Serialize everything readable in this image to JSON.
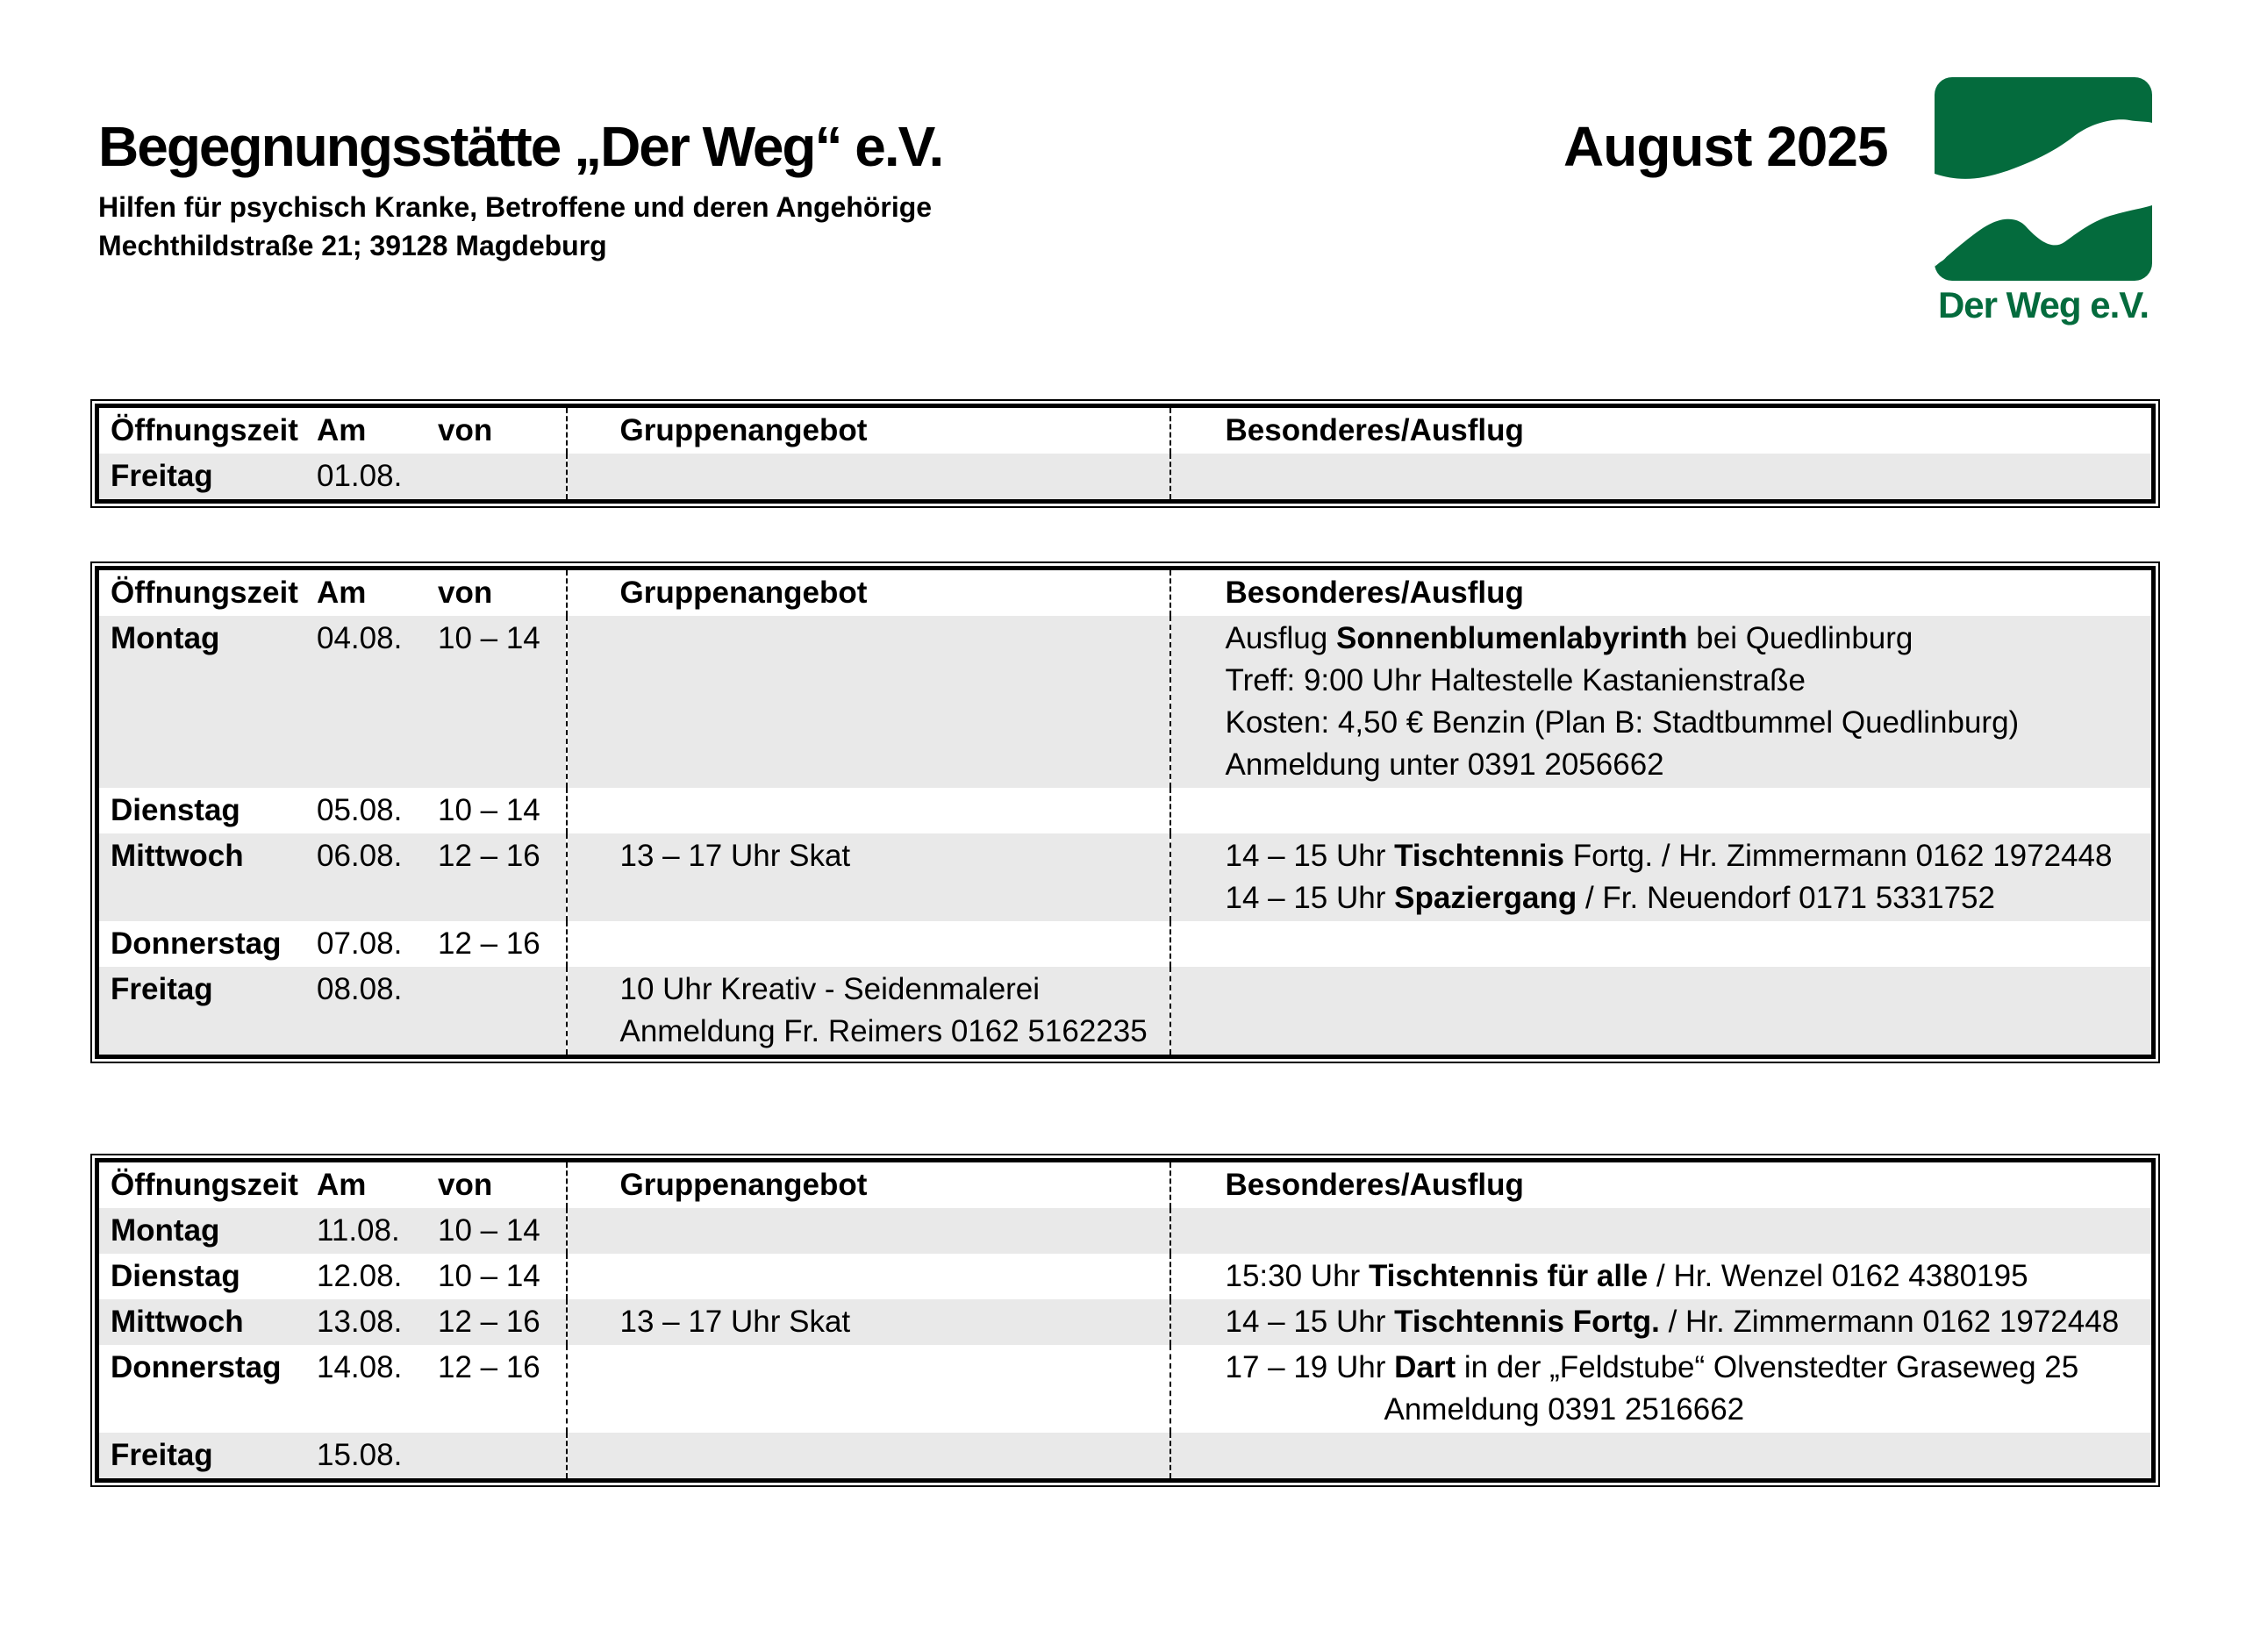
{
  "header": {
    "title": "Begegnungsstätte „Der Weg“ e.V.",
    "month": "August 2025",
    "subtitle": "Hilfen für psychisch Kranke, Betroffene und deren Angehörige",
    "address": "Mechthildstraße 21; 39128 Magdeburg",
    "logo_text": "Der Weg e.V.",
    "logo_green": "#046b3d"
  },
  "columns": {
    "oeffnungszeit": "Öffnungszeit",
    "am": "Am",
    "von": "von",
    "gruppenangebot": "Gruppenangebot",
    "besonderes": "Besonderes/Ausflug"
  },
  "row_colors": {
    "shaded": "#e9e9e9",
    "plain": "#ffffff"
  },
  "tables": [
    {
      "rows": [
        {
          "day": "Freitag",
          "date": "01.08.",
          "time": "",
          "shaded": true,
          "group": [],
          "special": []
        }
      ]
    },
    {
      "rows": [
        {
          "day": "Montag",
          "date": "04.08.",
          "time": "10 – 14",
          "shaded": true,
          "group": [],
          "special": [
            {
              "runs": [
                {
                  "t": "Ausflug "
                },
                {
                  "t": "Sonnenblumenlabyrinth",
                  "b": true
                },
                {
                  "t": " bei Quedlinburg"
                }
              ]
            },
            {
              "runs": [
                {
                  "t": "Treff: 9:00 Uhr Haltestelle Kastanienstraße"
                }
              ]
            },
            {
              "runs": [
                {
                  "t": "Kosten: 4,50 € Benzin (Plan B: Stadtbummel Quedlinburg)"
                }
              ]
            },
            {
              "runs": [
                {
                  "t": "Anmeldung unter 0391 2056662"
                }
              ]
            }
          ]
        },
        {
          "day": "Dienstag",
          "date": "05.08.",
          "time": "10 – 14",
          "shaded": false,
          "group": [],
          "special": []
        },
        {
          "day": "Mittwoch",
          "date": "06.08.",
          "time": "12 – 16",
          "shaded": true,
          "group": [
            {
              "runs": [
                {
                  "t": "13 – 17 Uhr Skat"
                }
              ]
            }
          ],
          "special": [
            {
              "runs": [
                {
                  "t": "14 – 15 Uhr "
                },
                {
                  "t": "Tischtennis",
                  "b": true
                },
                {
                  "t": " Fortg. / Hr. Zimmermann 0162 1972448"
                }
              ]
            },
            {
              "runs": [
                {
                  "t": "14 – 15 Uhr "
                },
                {
                  "t": "Spaziergang",
                  "b": true
                },
                {
                  "t": " / Fr. Neuendorf 0171 5331752"
                }
              ]
            }
          ]
        },
        {
          "day": "Donnerstag",
          "date": "07.08.",
          "time": "12 – 16",
          "shaded": false,
          "group": [],
          "special": []
        },
        {
          "day": "Freitag",
          "date": "08.08.",
          "time": "",
          "shaded": true,
          "group": [
            {
              "runs": [
                {
                  "t": "10 Uhr Kreativ - Seidenmalerei"
                }
              ]
            },
            {
              "runs": [
                {
                  "t": "Anmeldung Fr. Reimers 0162 5162235"
                }
              ]
            }
          ],
          "special": []
        }
      ]
    },
    {
      "rows": [
        {
          "day": "Montag",
          "date": "11.08.",
          "time": "10 – 14",
          "shaded": true,
          "group": [],
          "special": []
        },
        {
          "day": "Dienstag",
          "date": "12.08.",
          "time": "10 – 14",
          "shaded": false,
          "group": [],
          "special": [
            {
              "runs": [
                {
                  "t": "15:30 Uhr "
                },
                {
                  "t": "Tischtennis für alle",
                  "b": true
                },
                {
                  "t": " / Hr. Wenzel 0162 4380195"
                }
              ]
            }
          ]
        },
        {
          "day": "Mittwoch",
          "date": "13.08.",
          "time": "12 – 16",
          "shaded": true,
          "group": [
            {
              "runs": [
                {
                  "t": "13 – 17 Uhr Skat"
                }
              ]
            }
          ],
          "special": [
            {
              "runs": [
                {
                  "t": "14 – 15 Uhr "
                },
                {
                  "t": "Tischtennis Fortg.",
                  "b": true
                },
                {
                  "t": " / Hr. Zimmermann 0162 1972448"
                }
              ]
            }
          ]
        },
        {
          "day": "Donnerstag",
          "date": "14.08.",
          "time": "12 – 16",
          "shaded": false,
          "group": [],
          "special": [
            {
              "runs": [
                {
                  "t": "17 – 19 Uhr "
                },
                {
                  "t": "Dart",
                  "b": true
                },
                {
                  "t": " in der „Feldstube“ Olvenstedter Graseweg 25"
                }
              ]
            },
            {
              "runs": [
                {
                  "t": "Anmeldung 0391 2516662"
                }
              ],
              "indent": 181
            }
          ]
        },
        {
          "day": "Freitag",
          "date": "15.08.",
          "time": "",
          "shaded": true,
          "group": [],
          "special": []
        }
      ]
    }
  ]
}
